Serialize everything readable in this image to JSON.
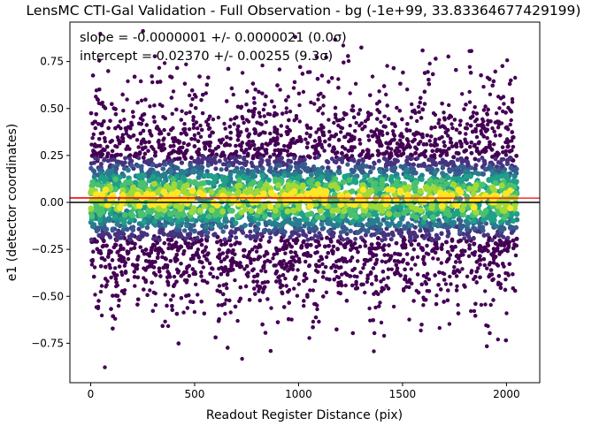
{
  "chart_data": {
    "type": "scatter",
    "title": "LensMC CTI-Gal Validation - Full Observation - bg (-1e+99, 33.83364677429199)",
    "xlabel": "Readout Register Distance (pix)",
    "ylabel": "e1 (detector coordinates)",
    "xlim": [
      -100,
      2160
    ],
    "ylim": [
      -0.96,
      0.96
    ],
    "xticks": [
      0,
      500,
      1000,
      1500,
      2000
    ],
    "yticks": [
      -0.75,
      -0.5,
      -0.25,
      0.0,
      0.25,
      0.5,
      0.75
    ],
    "xtick_labels": [
      "0",
      "500",
      "1000",
      "1500",
      "2000"
    ],
    "ytick_labels": [
      "−0.75",
      "−0.50",
      "−0.25",
      "0.00",
      "0.25",
      "0.50",
      "0.75"
    ],
    "annotation": {
      "slope_text": "slope = -0.0000001 +/- 0.0000021 (0.0σ)",
      "intercept_text": "intercept = 0.02370 +/- 0.00255 (9.3σ)"
    },
    "fit_line": {
      "slope": -1e-07,
      "intercept": 0.0237,
      "color": "#ff0000"
    },
    "reference_line": {
      "y": 0.0,
      "color": "#000000"
    },
    "scatter": {
      "x_range": [
        0,
        2050
      ],
      "y_std": 0.27,
      "y_mean": 0.02,
      "density_colormap": "viridis",
      "colors": [
        "#440154",
        "#46327e",
        "#365c8d",
        "#277f8e",
        "#1fa187",
        "#4ac16d",
        "#a0da39",
        "#fde725"
      ]
    },
    "grid": false,
    "legend": "none"
  }
}
